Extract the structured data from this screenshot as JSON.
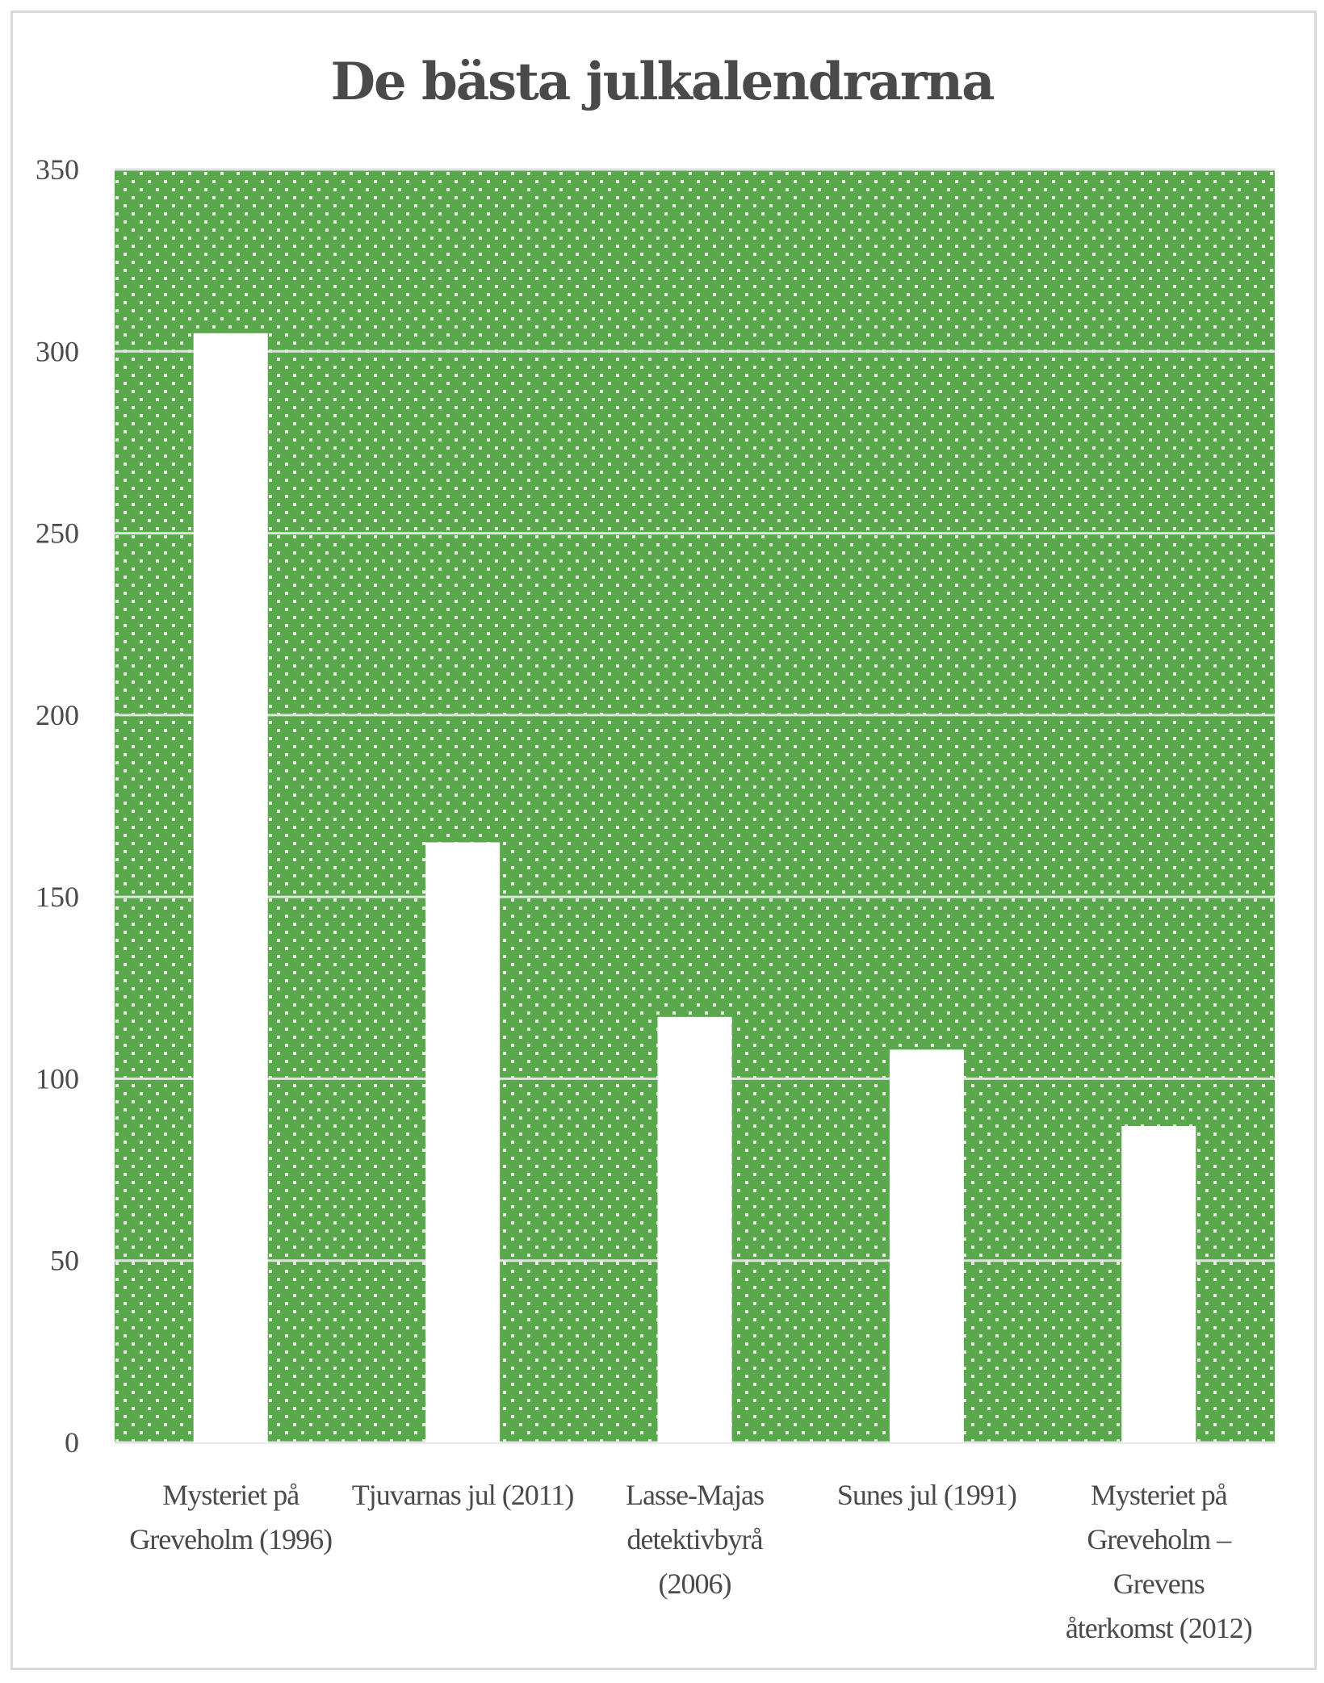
{
  "chart_data": {
    "type": "bar",
    "title": "De bästa julkalendrarna",
    "xlabel": "",
    "ylabel": "",
    "categories": [
      [
        "Mysteriet på",
        "Greveholm (1996)"
      ],
      [
        "Tjuvarnas jul (2011)"
      ],
      [
        "Lasse-Majas",
        "detektivbyrå",
        "(2006)"
      ],
      [
        "Sunes jul (1991)"
      ],
      [
        "Mysteriet på",
        "Greveholm –",
        "Grevens",
        "återkomst (2012)"
      ]
    ],
    "values": [
      305,
      165,
      117,
      108,
      87
    ],
    "ylim": [
      0,
      350
    ],
    "yticks": [
      "0",
      "50",
      "100",
      "150",
      "200",
      "250",
      "300",
      "350"
    ],
    "grid": true,
    "legend": "none",
    "colors": {
      "plot_background": "#5aa84c",
      "dots": "#e8f3e5",
      "bars": "#ffffff",
      "gridlines": "#e2e2e2",
      "title": "#4a4a4a",
      "axis_text": "#4a4a4a"
    }
  }
}
